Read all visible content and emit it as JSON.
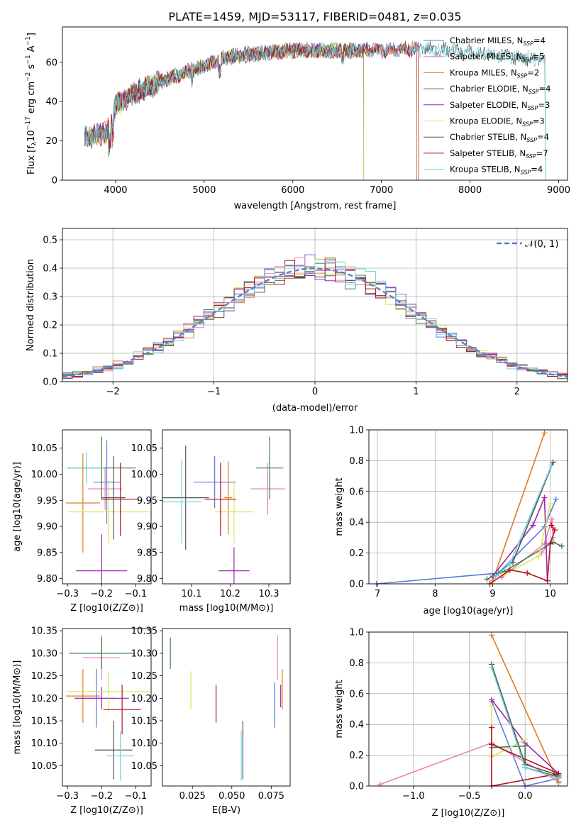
{
  "figure": {
    "title": "PLATE=1459, MJD=53117, FIBERID=0481, z=0.035"
  },
  "legend": {
    "sub": "SSP",
    "models": [
      {
        "name": "Chabrier MILES",
        "color": "#5b7bd6",
        "n_ssp": 4
      },
      {
        "name": "Salpeter MILES",
        "color": "#e87fbf",
        "n_ssp": 5
      },
      {
        "name": "Kroupa MILES",
        "color": "#e07b1f",
        "n_ssp": 2
      },
      {
        "name": "Chabrier ELODIE",
        "color": "#3f7f4a",
        "n_ssp": 4
      },
      {
        "name": "Salpeter ELODIE",
        "color": "#9a25b0",
        "n_ssp": 3
      },
      {
        "name": "Kroupa ELODIE",
        "color": "#d4e85a",
        "n_ssp": 3
      },
      {
        "name": "Chabrier STELIB",
        "color": "#555555",
        "n_ssp": 4
      },
      {
        "name": "Salpeter STELIB",
        "color": "#b3141c",
        "n_ssp": 7
      },
      {
        "name": "Kroupa STELIB",
        "color": "#6fd3dc",
        "n_ssp": 4
      }
    ]
  },
  "chart_data": [
    {
      "id": "spectrum",
      "type": "line",
      "xlabel": "wavelength [Angstrom, rest frame]",
      "ylabel": "Flux [f_λ 10^-17 erg cm^-2 s^-1 A^-1]",
      "xlim": [
        3400,
        9100
      ],
      "ylim": [
        0,
        78
      ],
      "xticks": [
        "4000",
        "5000",
        "6000",
        "7000",
        "8000",
        "9000"
      ],
      "yticks": [
        "0",
        "20",
        "40",
        "60"
      ],
      "grid": false,
      "legend_position": "top-right",
      "continuum": [
        [
          3650,
          22
        ],
        [
          3900,
          24
        ],
        [
          4000,
          38
        ],
        [
          4200,
          44
        ],
        [
          4500,
          50
        ],
        [
          4800,
          55
        ],
        [
          5000,
          58
        ],
        [
          5200,
          62
        ],
        [
          5500,
          64
        ],
        [
          6000,
          66
        ],
        [
          6500,
          66
        ],
        [
          7000,
          66
        ],
        [
          7500,
          67
        ],
        [
          7800,
          66
        ],
        [
          8200,
          64
        ],
        [
          8600,
          62
        ],
        [
          8850,
          62
        ]
      ],
      "series_ends": [
        {
          "model": "Chabrier MILES",
          "end": 7400
        },
        {
          "model": "Salpeter MILES",
          "end": 7400
        },
        {
          "model": "Kroupa MILES",
          "end": 7400
        },
        {
          "model": "Chabrier ELODIE",
          "end": 6800
        },
        {
          "model": "Salpeter ELODIE",
          "end": 6800
        },
        {
          "model": "Kroupa ELODIE",
          "end": 6800
        },
        {
          "model": "Chabrier STELIB",
          "end": 8850
        },
        {
          "model": "Salpeter STELIB",
          "end": 7420
        },
        {
          "model": "Kroupa STELIB",
          "end": 8850
        }
      ]
    },
    {
      "id": "residuals",
      "type": "histogram",
      "xlabel": "(data-model)/error",
      "ylabel": "Normed distribution",
      "xlim": [
        -2.5,
        2.5
      ],
      "ylim": [
        0,
        0.54
      ],
      "xticks": [
        "-2",
        "-1",
        "0",
        "1",
        "2"
      ],
      "yticks": [
        "0.0",
        "0.1",
        "0.2",
        "0.3",
        "0.4",
        "0.5"
      ],
      "grid": true,
      "bin_width": 0.1,
      "reference_curve": {
        "label": "𝒩(0, 1)",
        "color": "#5b7bd6",
        "style": "dashed",
        "mean": 0,
        "sigma": 1
      },
      "legend_position": "top-right"
    },
    {
      "id": "age_vs_Z",
      "type": "errorbar",
      "xlabel": "Z [log10(Z/Z⊙)]",
      "ylabel": "age  [log10(age/yr)]",
      "xlim": [
        -0.315,
        -0.055
      ],
      "ylim": [
        9.79,
        10.085
      ],
      "xticks": [
        -0.3,
        -0.2,
        -0.1
      ],
      "yticks": [
        9.8,
        9.85,
        9.9,
        9.95,
        10.0,
        10.05
      ],
      "points": [
        {
          "model": "Chabrier MILES",
          "x": -0.185,
          "y": 9.985,
          "xerr": 0.04,
          "yerr": 0.08
        },
        {
          "model": "Salpeter MILES",
          "x": -0.19,
          "y": 9.972,
          "xerr": 0.05,
          "yerr": 0.04
        },
        {
          "model": "Kroupa MILES",
          "x": -0.255,
          "y": 9.945,
          "xerr": 0.05,
          "yerr": 0.095
        },
        {
          "model": "Chabrier ELODIE",
          "x": -0.2,
          "y": 10.012,
          "xerr": 0.1,
          "yerr": 0.06
        },
        {
          "model": "Salpeter ELODIE",
          "x": -0.2,
          "y": 9.815,
          "xerr": 0.075,
          "yerr": 0.07
        },
        {
          "model": "Kroupa ELODIE",
          "x": -0.18,
          "y": 9.928,
          "xerr": 0.12,
          "yerr": 0.06
        },
        {
          "model": "Chabrier STELIB",
          "x": -0.165,
          "y": 9.955,
          "xerr": 0.035,
          "yerr": 0.08
        },
        {
          "model": "Salpeter STELIB",
          "x": -0.145,
          "y": 9.952,
          "xerr": 0.055,
          "yerr": 0.07
        },
        {
          "model": "Kroupa STELIB",
          "x": -0.245,
          "y": 10.012,
          "xerr": 0.05,
          "yerr": 0.03
        }
      ]
    },
    {
      "id": "age_vs_mass",
      "type": "errorbar",
      "xlabel": "mass [log10(M/M⊙)]",
      "ylabel": "",
      "xlim": [
        10.025,
        10.355
      ],
      "ylim": [
        9.79,
        10.085
      ],
      "xticks": [
        10.1,
        10.2,
        10.3
      ],
      "yticks": [
        9.8,
        9.85,
        9.9,
        9.95,
        10.0,
        10.05
      ],
      "points": [
        {
          "model": "Chabrier MILES",
          "x": 10.16,
          "y": 9.985,
          "xerr": 0.055,
          "yerr": 0.05
        },
        {
          "model": "Salpeter MILES",
          "x": 10.297,
          "y": 9.972,
          "xerr": 0.045,
          "yerr": 0.05
        },
        {
          "model": "Kroupa MILES",
          "x": 10.195,
          "y": 9.955,
          "xerr": 0.01,
          "yerr": 0.07
        },
        {
          "model": "Chabrier ELODIE",
          "x": 10.302,
          "y": 10.012,
          "xerr": 0.035,
          "yerr": 0.06
        },
        {
          "model": "Salpeter ELODIE",
          "x": 10.21,
          "y": 9.815,
          "xerr": 0.04,
          "yerr": 0.045
        },
        {
          "model": "Kroupa ELODIE",
          "x": 10.21,
          "y": 9.928,
          "xerr": 0.05,
          "yerr": 0.06
        },
        {
          "model": "Chabrier STELIB",
          "x": 10.085,
          "y": 9.955,
          "xerr": 0.06,
          "yerr": 0.1
        },
        {
          "model": "Salpeter STELIB",
          "x": 10.175,
          "y": 9.952,
          "xerr": 0.04,
          "yerr": 0.07
        },
        {
          "model": "Kroupa STELIB",
          "x": 10.075,
          "y": 9.947,
          "xerr": 0.05,
          "yerr": 0.08
        }
      ]
    },
    {
      "id": "weight_vs_age",
      "type": "line",
      "xlabel": "age  [log10(age/yr)]",
      "ylabel": "mass weight",
      "xlim": [
        6.85,
        10.3
      ],
      "ylim": [
        0,
        1.0
      ],
      "xticks": [
        7,
        8,
        9,
        10
      ],
      "yticks": [
        0.0,
        0.2,
        0.4,
        0.6,
        0.8,
        1.0
      ],
      "grid": true,
      "series": [
        {
          "model": "Chabrier MILES",
          "points": [
            [
              6.98,
              0.0
            ],
            [
              9.1,
              0.07
            ],
            [
              9.9,
              0.37
            ],
            [
              10.1,
              0.55
            ]
          ]
        },
        {
          "model": "Salpeter MILES",
          "points": [
            [
              9.15,
              0.04
            ],
            [
              9.9,
              0.26
            ],
            [
              10.03,
              0.42
            ],
            [
              10.05,
              0.3
            ],
            [
              9.85,
              0.2
            ]
          ]
        },
        {
          "model": "Kroupa MILES",
          "points": [
            [
              9.0,
              0.02
            ],
            [
              9.9,
              0.98
            ]
          ]
        },
        {
          "model": "Chabrier ELODIE",
          "points": [
            [
              8.9,
              0.03
            ],
            [
              9.2,
              0.08
            ],
            [
              10.05,
              0.27
            ],
            [
              10.2,
              0.245
            ]
          ]
        },
        {
          "model": "Salpeter ELODIE",
          "points": [
            [
              9.0,
              0.05
            ],
            [
              9.7,
              0.38
            ],
            [
              9.9,
              0.56
            ],
            [
              9.95,
              0.02
            ]
          ]
        },
        {
          "model": "Kroupa ELODIE",
          "points": [
            [
              9.2,
              0.06
            ],
            [
              9.8,
              0.18
            ],
            [
              10.0,
              0.52
            ]
          ]
        },
        {
          "model": "Chabrier STELIB",
          "points": [
            [
              9.05,
              0.06
            ],
            [
              9.35,
              0.14
            ],
            [
              10.05,
              0.79
            ]
          ]
        },
        {
          "model": "Salpeter STELIB",
          "points": [
            [
              8.95,
              0.0
            ],
            [
              9.3,
              0.09
            ],
            [
              9.6,
              0.07
            ],
            [
              9.95,
              0.02
            ],
            [
              10.0,
              0.26
            ],
            [
              10.08,
              0.35
            ],
            [
              10.02,
              0.38
            ]
          ]
        },
        {
          "model": "Kroupa STELIB",
          "points": [
            [
              9.05,
              0.05
            ],
            [
              9.3,
              0.13
            ],
            [
              10.02,
              0.77
            ]
          ]
        }
      ]
    },
    {
      "id": "mass_vs_Z",
      "type": "errorbar",
      "xlabel": "Z [log10(Z/Z⊙)]",
      "ylabel": "mass [log10(M/M⊙)]",
      "xlim": [
        -0.315,
        -0.055
      ],
      "ylim": [
        10.005,
        10.355
      ],
      "xticks": [
        -0.3,
        -0.2,
        -0.1
      ],
      "yticks": [
        10.05,
        10.1,
        10.15,
        10.2,
        10.25,
        10.3,
        10.35
      ],
      "points": [
        {
          "model": "Chabrier MILES",
          "x": -0.215,
          "y": 10.2,
          "xerr": 0.06,
          "yerr": 0.065
        },
        {
          "model": "Salpeter MILES",
          "x": -0.2,
          "y": 10.29,
          "xerr": 0.055,
          "yerr": 0.05
        },
        {
          "model": "Kroupa MILES",
          "x": -0.255,
          "y": 10.205,
          "xerr": 0.05,
          "yerr": 0.06
        },
        {
          "model": "Chabrier ELODIE",
          "x": -0.2,
          "y": 10.3,
          "xerr": 0.095,
          "yerr": 0.035
        },
        {
          "model": "Salpeter ELODIE",
          "x": -0.2,
          "y": 10.2,
          "xerr": 0.08,
          "yerr": 0.025
        },
        {
          "model": "Kroupa ELODIE",
          "x": -0.18,
          "y": 10.215,
          "xerr": 0.12,
          "yerr": 0.045
        },
        {
          "model": "Chabrier STELIB",
          "x": -0.165,
          "y": 10.085,
          "xerr": 0.055,
          "yerr": 0.065
        },
        {
          "model": "Salpeter STELIB",
          "x": -0.14,
          "y": 10.175,
          "xerr": 0.055,
          "yerr": 0.055
        },
        {
          "model": "Kroupa STELIB",
          "x": -0.145,
          "y": 10.072,
          "xerr": 0.04,
          "yerr": 0.055
        }
      ]
    },
    {
      "id": "mass_vs_ebv",
      "type": "errorbar",
      "xlabel": "E(B-V)",
      "ylabel": "",
      "xlim": [
        0.006,
        0.087
      ],
      "ylim": [
        10.005,
        10.355
      ],
      "xticks": [
        0.025,
        0.05,
        0.075
      ],
      "yticks": [
        10.05,
        10.1,
        10.15,
        10.2,
        10.25,
        10.3,
        10.35
      ],
      "points": [
        {
          "model": "Chabrier MILES",
          "x": 0.077,
          "y": 10.185,
          "xerr": 0,
          "yerr": 0.05
        },
        {
          "model": "Salpeter MILES",
          "x": 0.079,
          "y": 10.29,
          "xerr": 0,
          "yerr": 0.05
        },
        {
          "model": "Kroupa MILES",
          "x": 0.082,
          "y": 10.22,
          "xerr": 0,
          "yerr": 0.045
        },
        {
          "model": "Chabrier ELODIE",
          "x": 0.011,
          "y": 10.3,
          "xerr": 0,
          "yerr": 0.035
        },
        {
          "model": "Salpeter ELODIE",
          "x": 0.081,
          "y": 10.205,
          "xerr": 0,
          "yerr": 0.025
        },
        {
          "model": "Kroupa ELODIE",
          "x": 0.024,
          "y": 10.218,
          "xerr": 0,
          "yerr": 0.042
        },
        {
          "model": "Chabrier STELIB",
          "x": 0.057,
          "y": 10.085,
          "xerr": 0,
          "yerr": 0.065
        },
        {
          "model": "Salpeter STELIB",
          "x": 0.04,
          "y": 10.188,
          "xerr": 0,
          "yerr": 0.042
        },
        {
          "model": "Kroupa STELIB",
          "x": 0.056,
          "y": 10.072,
          "xerr": 0,
          "yerr": 0.055
        }
      ]
    },
    {
      "id": "weight_vs_Z",
      "type": "line",
      "xlabel": "Z [log10(Z/Z⊙)]",
      "ylabel": "mass weight",
      "xlim": [
        -1.4,
        0.38
      ],
      "ylim": [
        0,
        1.0
      ],
      "xticks": [
        -1.0,
        -0.5,
        0.0
      ],
      "yticks": [
        0.0,
        0.2,
        0.4,
        0.6,
        0.8,
        1.0
      ],
      "grid": true,
      "series": [
        {
          "model": "Chabrier MILES",
          "points": [
            [
              -0.3,
              0.55
            ],
            [
              0.0,
              0.0
            ],
            [
              0.3,
              0.05
            ]
          ]
        },
        {
          "model": "Salpeter MILES",
          "points": [
            [
              -1.3,
              0.01
            ],
            [
              -0.3,
              0.28
            ],
            [
              0.3,
              0.03
            ]
          ]
        },
        {
          "model": "Kroupa MILES",
          "points": [
            [
              -0.3,
              0.98
            ],
            [
              0.3,
              0.02
            ]
          ]
        },
        {
          "model": "Chabrier ELODIE",
          "points": [
            [
              -0.3,
              0.25
            ],
            [
              0.0,
              0.26
            ],
            [
              0.0,
              0.12
            ],
            [
              0.3,
              0.06
            ]
          ]
        },
        {
          "model": "Salpeter ELODIE",
          "points": [
            [
              -0.3,
              0.56
            ],
            [
              0.0,
              0.28
            ],
            [
              0.3,
              0.08
            ]
          ]
        },
        {
          "model": "Kroupa ELODIE",
          "points": [
            [
              -0.3,
              0.52
            ],
            [
              -0.3,
              0.19
            ],
            [
              0.0,
              0.3
            ]
          ]
        },
        {
          "model": "Chabrier STELIB",
          "points": [
            [
              -0.3,
              0.79
            ],
            [
              0.0,
              0.14
            ],
            [
              0.3,
              0.07
            ]
          ]
        },
        {
          "model": "Salpeter STELIB",
          "points": [
            [
              -0.3,
              0.38
            ],
            [
              -0.3,
              0.0
            ],
            [
              0.3,
              0.08
            ],
            [
              -0.3,
              0.27
            ]
          ]
        },
        {
          "model": "Kroupa STELIB",
          "points": [
            [
              -0.3,
              0.77
            ],
            [
              0.0,
              0.12
            ],
            [
              0.3,
              0.05
            ]
          ]
        }
      ]
    }
  ]
}
